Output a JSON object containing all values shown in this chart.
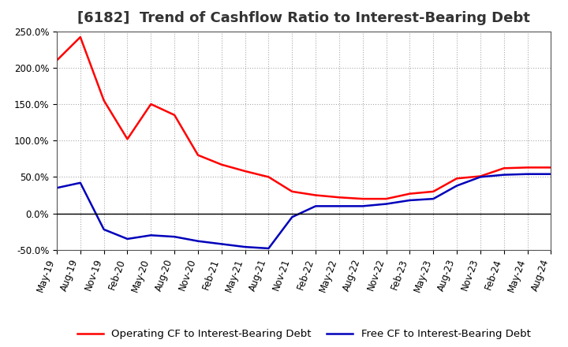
{
  "title": "[6182]  Trend of Cashflow Ratio to Interest-Bearing Debt",
  "x_labels": [
    "May-19",
    "Aug-19",
    "Nov-19",
    "Feb-20",
    "May-20",
    "Aug-20",
    "Nov-20",
    "Feb-21",
    "May-21",
    "Aug-21",
    "Nov-21",
    "Feb-22",
    "May-22",
    "Aug-22",
    "Nov-22",
    "Feb-23",
    "May-23",
    "Aug-23",
    "Nov-23",
    "Feb-24",
    "May-24",
    "Aug-24"
  ],
  "operating_cf": [
    210.0,
    242.0,
    155.0,
    102.0,
    150.0,
    135.0,
    80.0,
    67.0,
    58.0,
    50.0,
    30.0,
    25.0,
    22.0,
    20.0,
    20.0,
    27.0,
    30.0,
    48.0,
    51.0,
    62.0,
    63.0,
    63.0
  ],
  "free_cf": [
    35.0,
    42.0,
    -22.0,
    -35.0,
    -30.0,
    -32.0,
    -38.0,
    -42.0,
    -46.0,
    -48.0,
    -5.0,
    10.0,
    10.0,
    10.0,
    13.0,
    18.0,
    20.0,
    38.0,
    50.0,
    53.0,
    54.0,
    54.0
  ],
  "operating_color": "#ff0000",
  "free_color": "#0000bb",
  "ylim": [
    -50.0,
    250.0
  ],
  "yticks": [
    -50.0,
    0.0,
    50.0,
    100.0,
    150.0,
    200.0,
    250.0
  ],
  "legend_op": "Operating CF to Interest-Bearing Debt",
  "legend_free": "Free CF to Interest-Bearing Debt",
  "background_color": "#ffffff",
  "grid_color": "#aaaaaa",
  "title_fontsize": 13,
  "tick_fontsize": 8.5,
  "legend_fontsize": 9.5
}
